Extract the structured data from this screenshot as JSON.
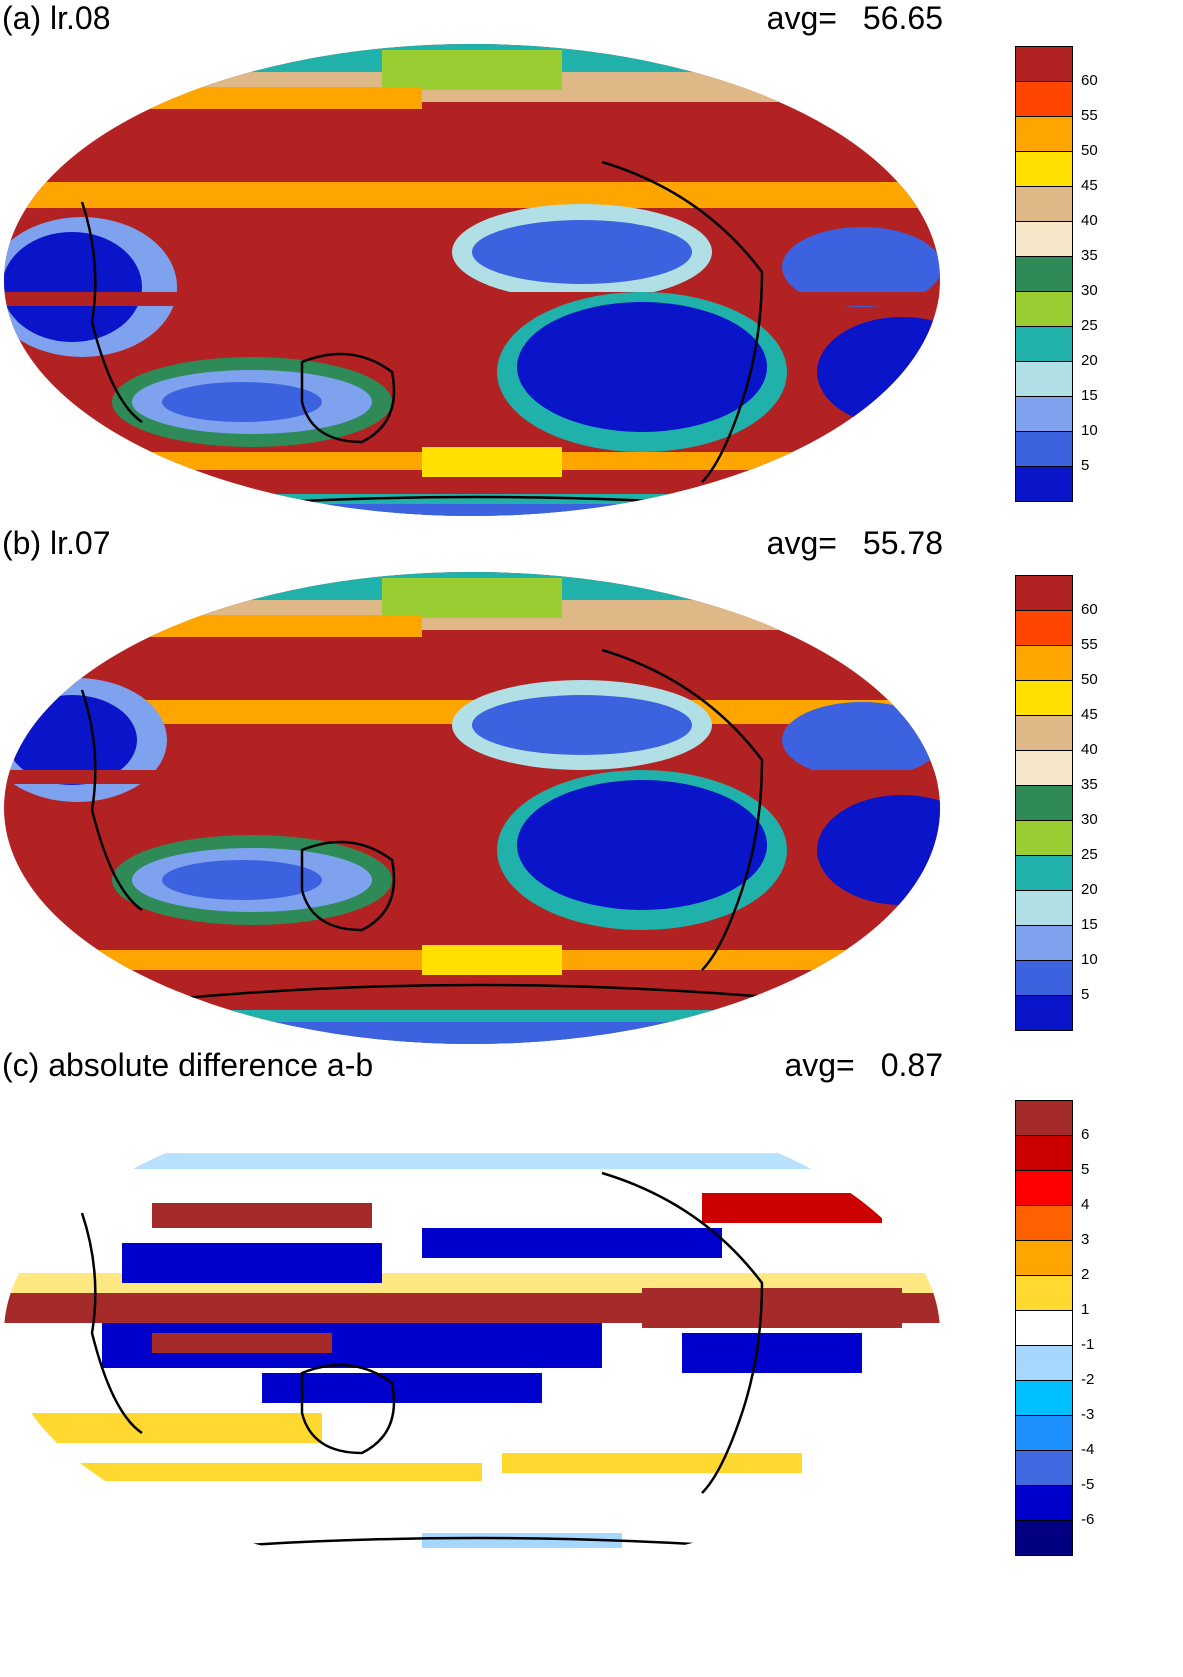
{
  "panels": [
    {
      "title": "(a) lr.08",
      "avg_label": "avg=",
      "avg_value": "56.65",
      "colorbar": {
        "colors": [
          "#0a14c8",
          "#3d62e0",
          "#7ea2ee",
          "#b0e0e6",
          "#20b2aa",
          "#9acd32",
          "#2e8b57",
          "#f5e6c8",
          "#deb887",
          "#ffe000",
          "#ffa500",
          "#ff4500",
          "#b22222"
        ],
        "tick_labels": [
          "5",
          "10",
          "15",
          "20",
          "25",
          "30",
          "35",
          "40",
          "45",
          "50",
          "55",
          "60"
        ]
      }
    },
    {
      "title": "(b) lr.07",
      "avg_label": "avg=",
      "avg_value": "55.78",
      "colorbar": {
        "colors": [
          "#0a14c8",
          "#3d62e0",
          "#7ea2ee",
          "#b0e0e6",
          "#20b2aa",
          "#9acd32",
          "#2e8b57",
          "#f5e6c8",
          "#deb887",
          "#ffe000",
          "#ffa500",
          "#ff4500",
          "#b22222"
        ],
        "tick_labels": [
          "5",
          "10",
          "15",
          "20",
          "25",
          "30",
          "35",
          "40",
          "45",
          "50",
          "55",
          "60"
        ]
      }
    },
    {
      "title": "(c) absolute difference a-b",
      "avg_label": "avg=",
      "avg_value": "0.87",
      "colorbar": {
        "colors": [
          "#000080",
          "#0000cd",
          "#4169e1",
          "#1e90ff",
          "#00bfff",
          "#a6d8ff",
          "#ffffff",
          "#ffd92f",
          "#ffa500",
          "#ff6000",
          "#ff0000",
          "#cc0000",
          "#a52a2a"
        ],
        "tick_labels": [
          "-6",
          "-5",
          "-4",
          "-3",
          "-2",
          "-1",
          "1",
          "2",
          "3",
          "4",
          "5",
          "6"
        ]
      }
    }
  ]
}
